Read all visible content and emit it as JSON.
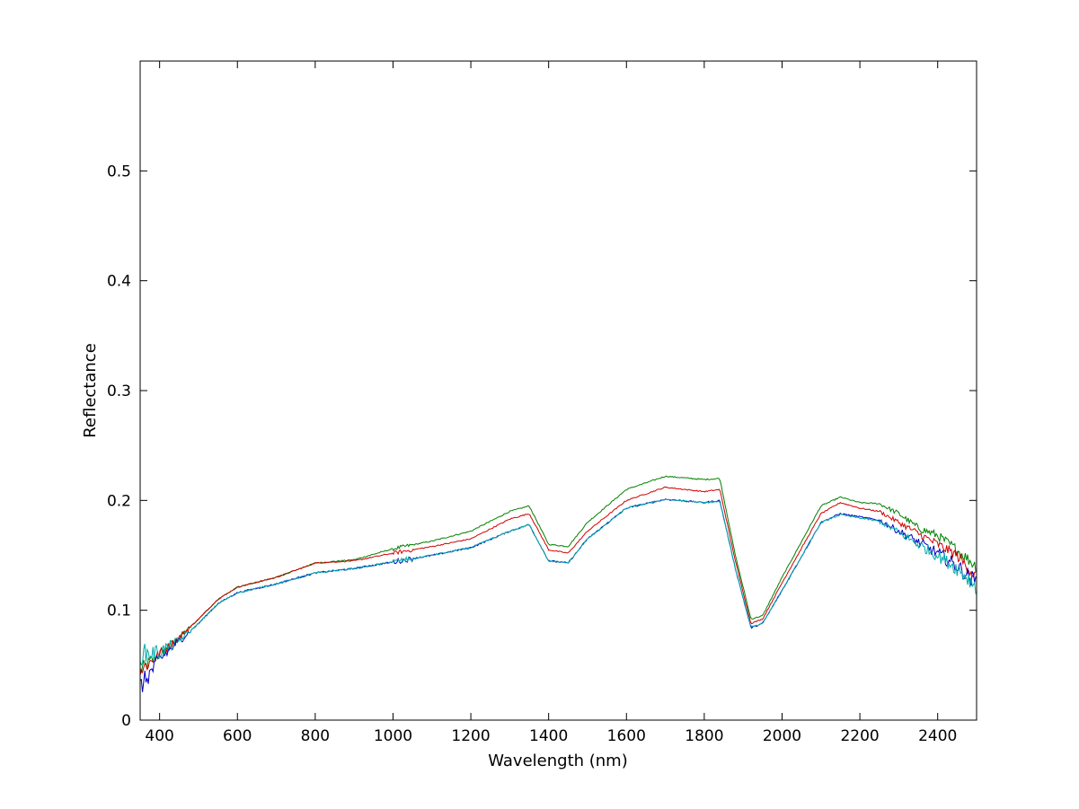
{
  "chart_data": {
    "type": "line",
    "title": "",
    "xlabel": "Wavelength (nm)",
    "ylabel": "Reflectance",
    "xlim": [
      350,
      2500
    ],
    "ylim": [
      0,
      0.6
    ],
    "grid": false,
    "legend": "none",
    "x_ticks": [
      400,
      600,
      800,
      1000,
      1200,
      1400,
      1600,
      1800,
      2000,
      2200,
      2400
    ],
    "x_tick_labels": [
      "400",
      "600",
      "800",
      "1000",
      "1200",
      "1400",
      "1600",
      "1800",
      "2000",
      "2200",
      "2400"
    ],
    "y_ticks": [
      0,
      0.1,
      0.2,
      0.3,
      0.4,
      0.5
    ],
    "y_tick_labels": [
      "0",
      "0.1",
      "0.2",
      "0.3",
      "0.4",
      "0.5"
    ],
    "x": [
      350,
      400,
      450,
      500,
      550,
      600,
      700,
      800,
      900,
      1000,
      1100,
      1200,
      1300,
      1350,
      1400,
      1450,
      1500,
      1600,
      1700,
      1800,
      1840,
      1880,
      1920,
      1950,
      2000,
      2100,
      2150,
      2200,
      2250,
      2300,
      2350,
      2400,
      2450,
      2500
    ],
    "series": [
      {
        "color": "#008000",
        "noise": 0.003,
        "values": [
          0.045,
          0.06,
          0.075,
          0.092,
          0.11,
          0.121,
          0.13,
          0.143,
          0.146,
          0.156,
          0.163,
          0.172,
          0.19,
          0.195,
          0.16,
          0.158,
          0.18,
          0.21,
          0.222,
          0.219,
          0.22,
          0.15,
          0.092,
          0.095,
          0.13,
          0.195,
          0.203,
          0.198,
          0.197,
          0.188,
          0.175,
          0.168,
          0.155,
          0.14
        ]
      },
      {
        "color": "#d00000",
        "noise": 0.003,
        "values": [
          0.045,
          0.06,
          0.075,
          0.092,
          0.11,
          0.121,
          0.13,
          0.143,
          0.145,
          0.152,
          0.158,
          0.165,
          0.183,
          0.188,
          0.155,
          0.152,
          0.172,
          0.2,
          0.212,
          0.208,
          0.21,
          0.145,
          0.088,
          0.092,
          0.125,
          0.188,
          0.198,
          0.193,
          0.19,
          0.18,
          0.17,
          0.16,
          0.15,
          0.13
        ]
      },
      {
        "color": "#0000c0",
        "noise": 0.004,
        "values": [
          0.03,
          0.055,
          0.072,
          0.088,
          0.106,
          0.116,
          0.124,
          0.134,
          0.138,
          0.144,
          0.15,
          0.157,
          0.172,
          0.178,
          0.145,
          0.143,
          0.165,
          0.193,
          0.201,
          0.198,
          0.2,
          0.138,
          0.084,
          0.088,
          0.118,
          0.18,
          0.188,
          0.185,
          0.182,
          0.172,
          0.162,
          0.152,
          0.14,
          0.125
        ]
      },
      {
        "color": "#00aaaa",
        "noise": 0.004,
        "values": [
          0.06,
          0.062,
          0.072,
          0.088,
          0.106,
          0.116,
          0.124,
          0.134,
          0.138,
          0.144,
          0.15,
          0.157,
          0.172,
          0.178,
          0.145,
          0.143,
          0.165,
          0.193,
          0.201,
          0.198,
          0.199,
          0.138,
          0.085,
          0.088,
          0.118,
          0.18,
          0.187,
          0.184,
          0.181,
          0.171,
          0.16,
          0.15,
          0.138,
          0.122
        ]
      }
    ]
  }
}
